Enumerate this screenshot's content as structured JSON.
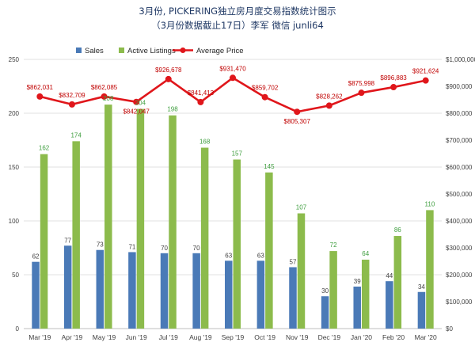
{
  "chart_data": {
    "type": "bar+line",
    "title_line1": "3月份, PICKERING独立房月度交易指数统计图示",
    "title_line2": "（3月份数据截止17日）李军  微信 junli64",
    "categories": [
      "Mar '19",
      "Apr '19",
      "May '19",
      "Jun '19",
      "Jul '19",
      "Aug '19",
      "Sep '19",
      "Oct '19",
      "Nov '19",
      "Dec '19",
      "Jan '20",
      "Feb '20",
      "Mar '20"
    ],
    "series": [
      {
        "name": "Sales",
        "axis": "left",
        "kind": "bar",
        "values": [
          62,
          77,
          73,
          71,
          70,
          70,
          63,
          63,
          57,
          30,
          39,
          44,
          34
        ]
      },
      {
        "name": "Active Listings",
        "axis": "left",
        "kind": "bar",
        "values": [
          162,
          174,
          208,
          204,
          198,
          168,
          157,
          145,
          107,
          72,
          64,
          86,
          110
        ]
      },
      {
        "name": "Average Price",
        "axis": "right",
        "kind": "line",
        "values": [
          862031,
          832709,
          862085,
          842047,
          926678,
          841413,
          931470,
          859702,
          805307,
          828262,
          875998,
          896883,
          921624
        ]
      }
    ],
    "price_labels": [
      "$862,031",
      "$832,709",
      "$862,085",
      "$842,047",
      "$926,678",
      "$841,413",
      "$931,470",
      "$859,702",
      "$805,307",
      "$828,262",
      "$875,998",
      "$896,883",
      "$921,624"
    ],
    "y_left": {
      "min": 0,
      "max": 250,
      "step": 50,
      "ticks": [
        "0",
        "50",
        "100",
        "150",
        "200",
        "250"
      ]
    },
    "y_right": {
      "min": 0,
      "max": 1000000,
      "step": 100000,
      "ticks": [
        "$0",
        "$100,000",
        "$200,000",
        "$300,000",
        "$400,000",
        "$500,000",
        "$600,000",
        "$700,000",
        "$800,000",
        "$900,000",
        "$1,000,000"
      ]
    },
    "legend": {
      "position": "top",
      "items": [
        "Sales",
        "Active Listings",
        "Average Price"
      ]
    },
    "colors": {
      "sales": "#4a7ab7",
      "active": "#8cbb4c",
      "price": "#e0161b",
      "price_label": "#c00000",
      "active_label": "#3f9e3f",
      "grid": "#d9d9d9"
    }
  }
}
